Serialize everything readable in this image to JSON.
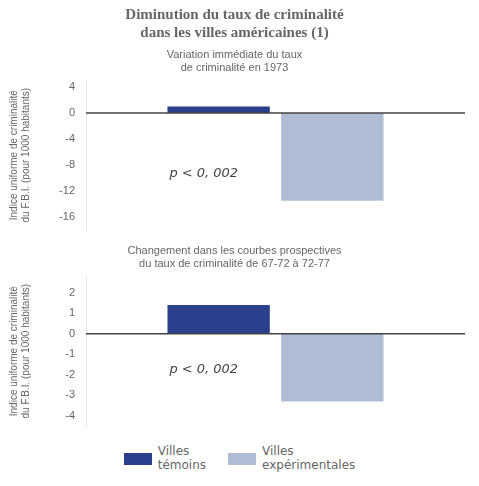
{
  "chart_data": [
    {
      "type": "bar",
      "title": "Diminution du taux de criminalité\ndans les villes américaines (1)",
      "subtitle": "Variation immédiate du taux\nde criminalité en 1973",
      "categories": [
        null
      ],
      "series": [
        {
          "name": "Villes\ntémoins",
          "color": "#2b3f8c",
          "values": [
            1.0
          ]
        },
        {
          "name": "Villes\nexpérimentales",
          "color": "#b0bbd4",
          "values": [
            -13.5
          ]
        }
      ],
      "ylabel": "Indice uniforme de criminalité\ndu F.B.I. (pour 1000 habitants)",
      "ylim": [
        -18,
        5
      ],
      "yticks": [
        4,
        0,
        -4,
        -8,
        -12,
        -16
      ],
      "annotations": [
        {
          "text": "p < 0, 002"
        }
      ],
      "grid": false,
      "tick_labels": "y"
    },
    {
      "type": "bar",
      "subtitle": "Changement dans les courbes prospectives\ndu taux de criminalité de 67-72 à 72-77",
      "categories": [
        null
      ],
      "series": [
        {
          "name": "Villes\ntémoins",
          "color": "#2b3f8c",
          "values": [
            1.4
          ]
        },
        {
          "name": "Villes\nexpérimentales",
          "color": "#b0bbd4",
          "values": [
            -3.3
          ]
        }
      ],
      "ylabel": "Indice uniforme de criminalité\ndu F.B.I. (pour 1000 habitants)",
      "ylim": [
        -4.5,
        2.8
      ],
      "yticks": [
        2,
        1,
        0,
        -1,
        -2,
        -3,
        -4
      ],
      "annotations": [
        {
          "text": "p < 0, 002"
        }
      ],
      "grid": false,
      "tick_labels": "y",
      "legend": "bottom"
    }
  ]
}
